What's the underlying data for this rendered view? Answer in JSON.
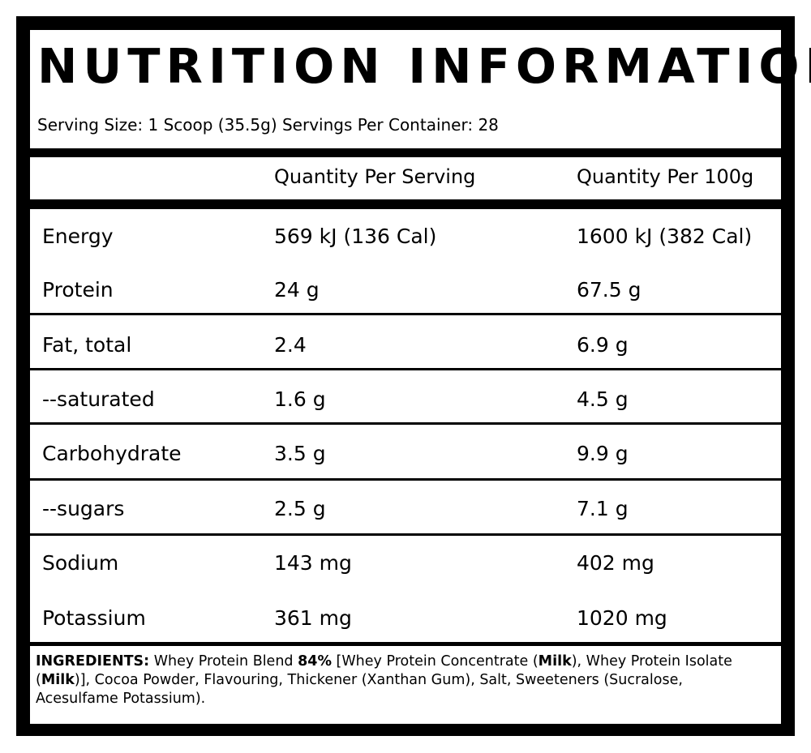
{
  "title": "NUTRITION INFORMATION",
  "serving_line": "Serving Size: 1 Scoop (35.5g) Servings Per Container: 28",
  "table": {
    "headers": [
      "",
      "Quantity Per Serving",
      "Quantity Per 100g"
    ],
    "rows": [
      {
        "name": "Energy",
        "per_serving": "569 kJ (136 Cal)",
        "per_100g": "1600 kJ (382 Cal)"
      },
      {
        "name": "Protein",
        "per_serving": "24 g",
        "per_100g": "67.5 g"
      },
      {
        "name": "Fat, total",
        "per_serving": "2.4",
        "per_100g": "6.9 g"
      },
      {
        "name": "--saturated",
        "per_serving": "1.6 g",
        "per_100g": "4.5 g"
      },
      {
        "name": "Carbohydrate",
        "per_serving": "3.5 g",
        "per_100g": "9.9 g"
      },
      {
        "name": "--sugars",
        "per_serving": "2.5 g",
        "per_100g": "7.1 g"
      },
      {
        "name": "Sodium",
        "per_serving": "143 mg",
        "per_100g": "402 mg"
      },
      {
        "name": "Potassium",
        "per_serving": "361 mg",
        "per_100g": "1020 mg"
      }
    ]
  },
  "ingredients": {
    "heading": "INGREDIENTS:",
    "t1": " Whey Protein Blend ",
    "b1": "84%",
    "t2": " [Whey Protein Concentrate (",
    "b2": "Milk",
    "t3": "), Whey Protein Isolate (",
    "b3": "Milk",
    "t4": ")], Cocoa Powder, Flavouring, Thickener (Xanthan Gum), Salt, Sweeteners (Sucralose, Acesulfame Potassium)."
  }
}
